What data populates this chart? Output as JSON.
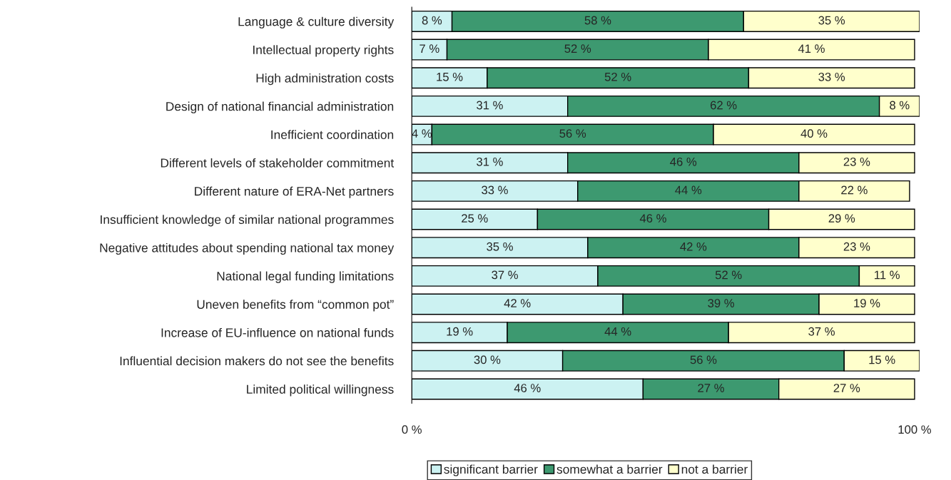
{
  "chart_data": {
    "type": "bar",
    "orientation": "horizontal",
    "stacked": true,
    "categories": [
      "Language & culture diversity",
      "Intellectual property rights",
      "High administration costs",
      "Design of national financial administration",
      "Inefficient coordination",
      "Different levels of stakeholder commitment",
      "Different nature of ERA-Net partners",
      "Insufficient knowledge of similar national programmes",
      "Negative attitudes about spending national tax money",
      "National legal funding limitations",
      "Uneven benefits from “common pot”",
      "Increase of EU-influence on national funds",
      "Influential decision makers do not see the benefits",
      "Limited political willingness"
    ],
    "series": [
      {
        "name": "significant barrier",
        "color": "#ccf2f2",
        "values": [
          8,
          7,
          15,
          31,
          4,
          31,
          33,
          25,
          35,
          37,
          42,
          19,
          30,
          46
        ],
        "value_labels": [
          "8 %",
          "7 %",
          "15 %",
          "31 %",
          "4 %",
          "31 %",
          "33 %",
          "25 %",
          "35 %",
          "37 %",
          "42 %",
          "19 %",
          "30 %",
          "46 %"
        ]
      },
      {
        "name": "somewhat a barrier",
        "color": "#3d9970",
        "values": [
          58,
          52,
          52,
          62,
          56,
          46,
          44,
          46,
          42,
          52,
          39,
          44,
          56,
          27
        ],
        "value_labels": [
          "58 %",
          "52 %",
          "52 %",
          "62 %",
          "56 %",
          "46 %",
          "44 %",
          "46 %",
          "42 %",
          "52 %",
          "39 %",
          "44 %",
          "56 %",
          "27 %"
        ]
      },
      {
        "name": "not a barrier",
        "color": "#ffffcc",
        "values": [
          35,
          41,
          33,
          8,
          40,
          23,
          22,
          29,
          23,
          11,
          19,
          37,
          15,
          27
        ],
        "value_labels": [
          "35 %",
          "41 %",
          "33 %",
          "8 %",
          "40 %",
          "23 %",
          "22 %",
          "29 %",
          "23 %",
          "11 %",
          "19 %",
          "37 %",
          "15 %",
          "27 %"
        ]
      }
    ],
    "xlim": [
      0,
      101
    ],
    "xticks": [
      {
        "value": 0,
        "label": "0 %"
      },
      {
        "value": 100,
        "label": "100 %"
      }
    ],
    "grid": false,
    "legend": "bottom"
  }
}
